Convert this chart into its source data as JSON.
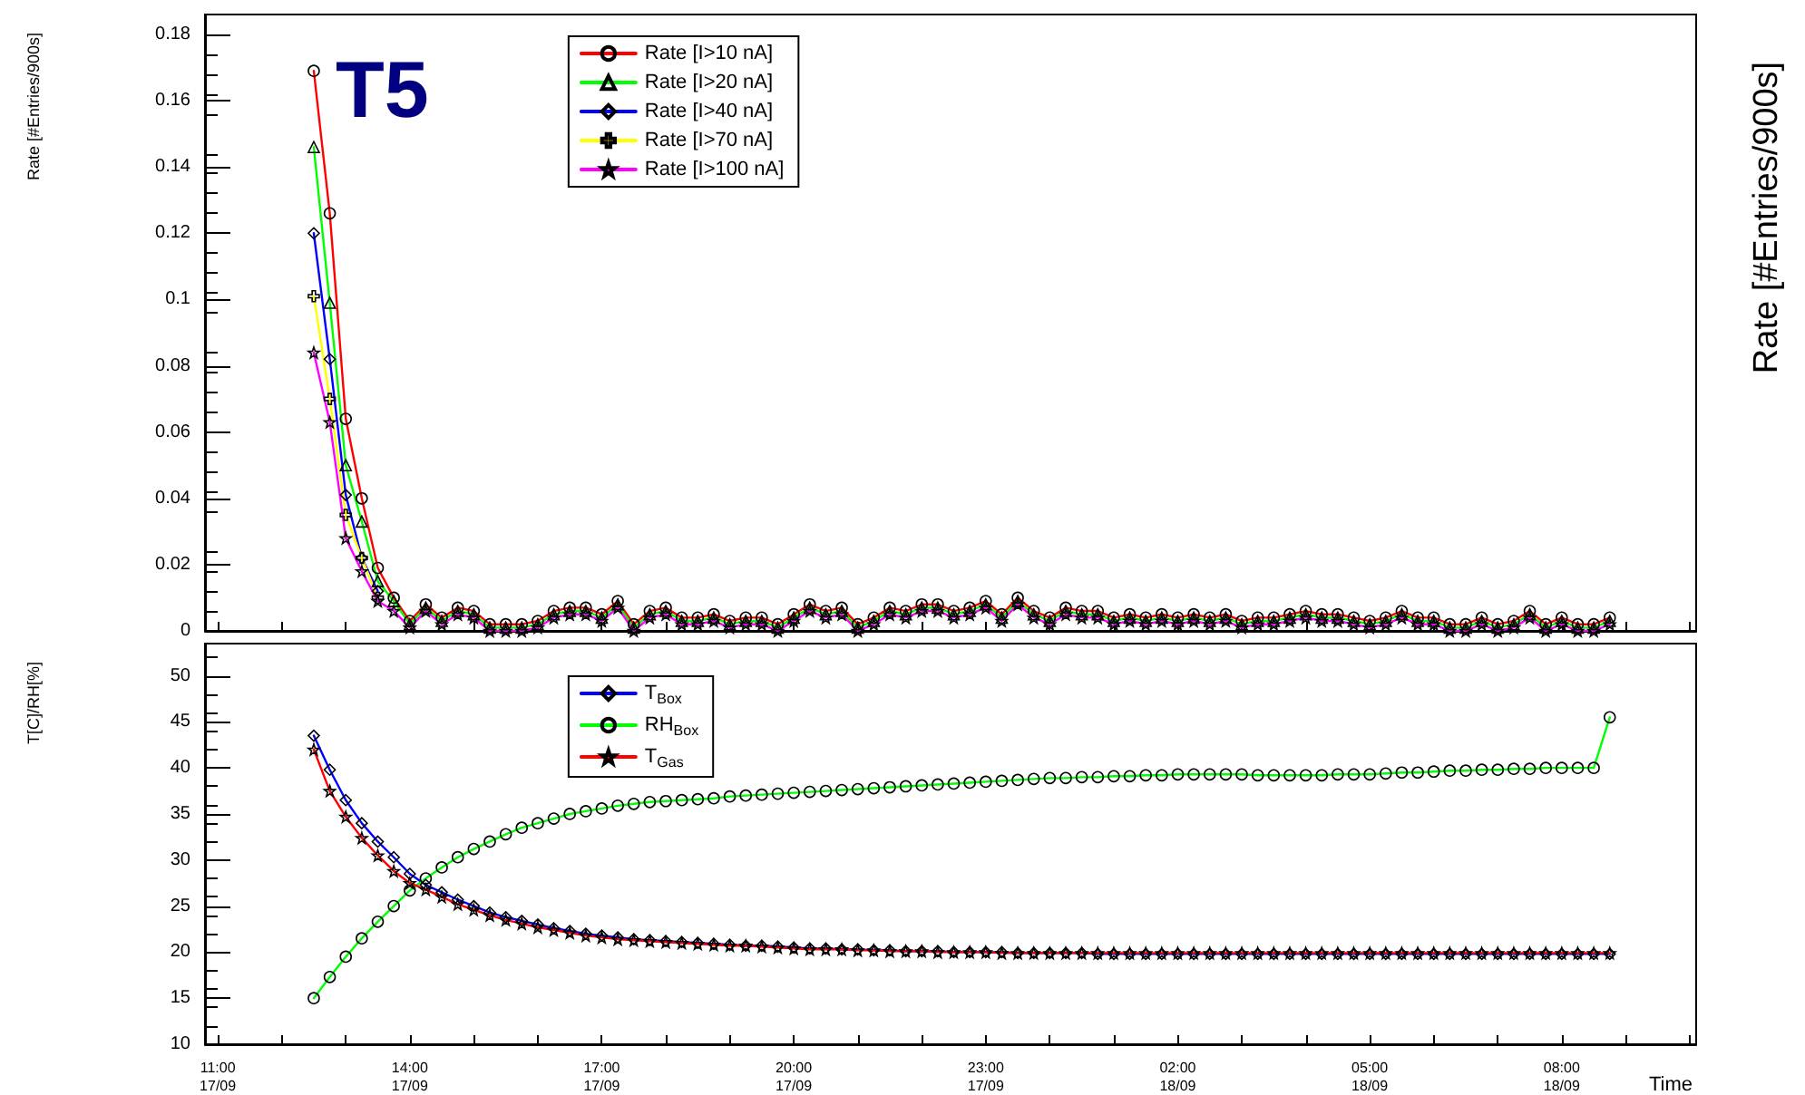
{
  "chart_data": [
    {
      "type": "line",
      "ylabel": "Rate [#Entries/900s]",
      "y2label": "Rate [#Entries/900s]",
      "annotations": [
        "T5"
      ],
      "x": [
        "--09-17T12:30",
        "--09-17T12:45",
        "--09-17T13:00",
        "--09-17T13:15",
        "--09-17T13:30",
        "--09-17T13:45",
        "--09-17T14:00",
        "--09-17T14:15",
        "--09-17T14:30",
        "--09-17T14:45",
        "--09-17T15:00",
        "--09-17T15:15",
        "--09-17T15:30",
        "--09-17T15:45",
        "--09-17T16:00",
        "--09-17T16:15",
        "--09-17T16:30",
        "--09-17T16:45",
        "--09-17T17:00",
        "--09-17T17:15",
        "--09-17T17:30",
        "--09-17T17:45",
        "--09-17T18:00",
        "--09-17T18:15",
        "--09-17T18:30",
        "--09-17T18:45",
        "--09-17T19:00",
        "--09-17T19:15",
        "--09-17T19:30",
        "--09-17T19:45",
        "--09-17T20:00",
        "--09-17T20:15",
        "--09-17T20:30",
        "--09-17T20:45",
        "--09-17T21:00",
        "--09-17T21:15",
        "--09-17T21:30",
        "--09-17T21:45",
        "--09-17T22:00",
        "--09-17T22:15",
        "--09-17T22:30",
        "--09-17T22:45",
        "--09-17T23:00",
        "--09-17T23:15",
        "--09-17T23:30",
        "--09-17T23:45",
        "--09-18T00:00",
        "--09-18T00:15",
        "--09-18T00:30",
        "--09-18T00:45",
        "--09-18T01:00",
        "--09-18T01:15",
        "--09-18T01:30",
        "--09-18T01:45",
        "--09-18T02:00",
        "--09-18T02:15",
        "--09-18T02:30",
        "--09-18T02:45",
        "--09-18T03:00",
        "--09-18T03:15",
        "--09-18T03:30",
        "--09-18T03:45",
        "--09-18T04:00",
        "--09-18T04:15",
        "--09-18T04:30",
        "--09-18T04:45",
        "--09-18T05:00",
        "--09-18T05:15",
        "--09-18T05:30",
        "--09-18T05:45",
        "--09-18T06:00",
        "--09-18T06:15",
        "--09-18T06:30",
        "--09-18T06:45",
        "--09-18T07:00",
        "--09-18T07:15",
        "--09-18T07:30",
        "--09-18T07:45",
        "--09-18T08:00",
        "--09-18T08:15",
        "--09-18T08:30",
        "--09-18T08:45"
      ],
      "series": [
        {
          "name": "Rate [I>10 nA]",
          "color": "#ff0000",
          "marker": "circle",
          "values": [
            0.169,
            0.126,
            0.064,
            0.04,
            0.019,
            0.01,
            0.003,
            0.008,
            0.004,
            0.007,
            0.006,
            0.002,
            0.002,
            0.002,
            0.003,
            0.006,
            0.007,
            0.007,
            0.005,
            0.009,
            0.002,
            0.006,
            0.007,
            0.004,
            0.004,
            0.005,
            0.003,
            0.004,
            0.004,
            0.002,
            0.005,
            0.008,
            0.006,
            0.007,
            0.002,
            0.004,
            0.007,
            0.006,
            0.008,
            0.008,
            0.006,
            0.007,
            0.009,
            0.005,
            0.01,
            0.006,
            0.004,
            0.007,
            0.006,
            0.006,
            0.004,
            0.005,
            0.004,
            0.005,
            0.004,
            0.005,
            0.004,
            0.005,
            0.003,
            0.004,
            0.004,
            0.005,
            0.006,
            0.005,
            0.005,
            0.004,
            0.003,
            0.004,
            0.006,
            0.004,
            0.004,
            0.002,
            0.002,
            0.004,
            0.002,
            0.003,
            0.006,
            0.002,
            0.004,
            0.002,
            0.002,
            0.004
          ]
        },
        {
          "name": "Rate [I>20 nA]",
          "color": "#00ff00",
          "marker": "triangle",
          "values": [
            0.146,
            0.099,
            0.05,
            0.033,
            0.015,
            0.009,
            0.002,
            0.007,
            0.003,
            0.006,
            0.005,
            0.001,
            0.001,
            0.001,
            0.002,
            0.005,
            0.006,
            0.006,
            0.004,
            0.008,
            0.001,
            0.005,
            0.006,
            0.003,
            0.003,
            0.004,
            0.002,
            0.003,
            0.003,
            0.001,
            0.004,
            0.007,
            0.005,
            0.006,
            0.001,
            0.003,
            0.006,
            0.005,
            0.007,
            0.007,
            0.005,
            0.006,
            0.008,
            0.004,
            0.009,
            0.005,
            0.003,
            0.006,
            0.005,
            0.005,
            0.003,
            0.004,
            0.003,
            0.004,
            0.003,
            0.004,
            0.003,
            0.004,
            0.002,
            0.003,
            0.003,
            0.004,
            0.005,
            0.004,
            0.004,
            0.003,
            0.002,
            0.003,
            0.005,
            0.003,
            0.003,
            0.001,
            0.001,
            0.003,
            0.001,
            0.002,
            0.005,
            0.001,
            0.003,
            0.001,
            0.001,
            0.003
          ]
        },
        {
          "name": "Rate [I>40 nA]",
          "color": "#0000ff",
          "marker": "diamond",
          "values": [
            0.12,
            0.082,
            0.041,
            0.022,
            0.012,
            null,
            null,
            null,
            null,
            null,
            null,
            null,
            null,
            null,
            null,
            null,
            null,
            null,
            null,
            null,
            null,
            null,
            null,
            null,
            null,
            null,
            null,
            null,
            null,
            null,
            null,
            null,
            null,
            null,
            null,
            null,
            null,
            null,
            null,
            null,
            null,
            null,
            null,
            null,
            null,
            null,
            null,
            null,
            null,
            null,
            null,
            null,
            null,
            null,
            null,
            null,
            null,
            null,
            null,
            null,
            null,
            null,
            null,
            null,
            null,
            null,
            null,
            null,
            null,
            null,
            null,
            null,
            null,
            null,
            null,
            null,
            null,
            null,
            null,
            null,
            null,
            null
          ]
        },
        {
          "name": "Rate [I>70 nA]",
          "color": "#ffff00",
          "marker": "cross",
          "values": [
            0.101,
            0.07,
            0.035,
            0.022,
            0.01,
            null,
            null,
            null,
            null,
            null,
            null,
            null,
            null,
            null,
            null,
            null,
            null,
            null,
            null,
            null,
            null,
            null,
            null,
            null,
            null,
            null,
            null,
            null,
            null,
            null,
            null,
            null,
            null,
            null,
            null,
            null,
            null,
            null,
            null,
            null,
            null,
            null,
            null,
            null,
            null,
            null,
            null,
            null,
            null,
            null,
            null,
            null,
            null,
            null,
            null,
            null,
            null,
            null,
            null,
            null,
            null,
            null,
            null,
            null,
            null,
            null,
            null,
            null,
            null,
            null,
            null,
            null,
            null,
            null,
            null,
            null,
            null,
            null,
            null,
            null,
            null,
            null
          ]
        },
        {
          "name": "Rate [I>100 nA]",
          "color": "#ff00ff",
          "marker": "star",
          "values": [
            0.084,
            0.063,
            0.028,
            0.018,
            0.009,
            0.006,
            0.001,
            0.006,
            0.002,
            0.005,
            0.004,
            0,
            0,
            0,
            0.001,
            0.004,
            0.005,
            0.005,
            0.003,
            0.007,
            0,
            0.004,
            0.005,
            0.002,
            0.002,
            0.003,
            0.001,
            0.002,
            0.002,
            0,
            0.003,
            0.006,
            0.004,
            0.005,
            0,
            0.002,
            0.005,
            0.004,
            0.006,
            0.006,
            0.004,
            0.005,
            0.007,
            0.003,
            0.008,
            0.004,
            0.002,
            0.005,
            0.004,
            0.004,
            0.002,
            0.003,
            0.002,
            0.003,
            0.002,
            0.003,
            0.002,
            0.003,
            0.001,
            0.002,
            0.002,
            0.003,
            0.004,
            0.003,
            0.003,
            0.002,
            0.001,
            0.002,
            0.004,
            0.002,
            0.002,
            0,
            0,
            0.002,
            0,
            0.001,
            0.004,
            0,
            0.002,
            0,
            0,
            0.002
          ]
        }
      ],
      "xlim": [
        "--09-17T10:48",
        "--09-18T10:06"
      ],
      "xticks": [
        {
          "value": "--09-17T11:00",
          "label": null
        },
        {
          "value": "--09-17T12:00",
          "label": null
        },
        {
          "value": "--09-17T13:00",
          "label": null
        },
        {
          "value": "--09-17T14:00",
          "label": null
        },
        {
          "value": "--09-17T15:00",
          "label": null
        },
        {
          "value": "--09-17T16:00",
          "label": null
        },
        {
          "value": "--09-17T17:00",
          "label": null
        },
        {
          "value": "--09-17T18:00",
          "label": null
        },
        {
          "value": "--09-17T19:00",
          "label": null
        },
        {
          "value": "--09-17T20:00",
          "label": null
        },
        {
          "value": "--09-17T21:00",
          "label": null
        },
        {
          "value": "--09-17T22:00",
          "label": null
        },
        {
          "value": "--09-17T23:00",
          "label": null
        },
        {
          "value": "--09-18T00:00",
          "label": null
        },
        {
          "value": "--09-18T01:00",
          "label": null
        },
        {
          "value": "--09-18T02:00",
          "label": null
        },
        {
          "value": "--09-18T03:00",
          "label": null
        },
        {
          "value": "--09-18T04:00",
          "label": null
        },
        {
          "value": "--09-18T05:00",
          "label": null
        },
        {
          "value": "--09-18T06:00",
          "label": null
        },
        {
          "value": "--09-18T07:00",
          "label": null
        },
        {
          "value": "--09-18T08:00",
          "label": null
        },
        {
          "value": "--09-18T09:00",
          "label": null
        },
        {
          "value": "--09-18T10:00",
          "label": null
        }
      ],
      "ylim": [
        0,
        0.186
      ],
      "yticks": [
        0,
        0.02,
        0.04,
        0.06,
        0.08,
        0.1,
        0.12,
        0.14,
        0.16,
        0.18
      ],
      "tick_labels": "y",
      "legend": "top",
      "grid": false
    },
    {
      "type": "line",
      "xlabel": "Time",
      "ylabel": "T[C]/RH[%]",
      "x": [
        "--09-17T12:30",
        "--09-17T12:45",
        "--09-17T13:00",
        "--09-17T13:15",
        "--09-17T13:30",
        "--09-17T13:45",
        "--09-17T14:00",
        "--09-17T14:15",
        "--09-17T14:30",
        "--09-17T14:45",
        "--09-17T15:00",
        "--09-17T15:15",
        "--09-17T15:30",
        "--09-17T15:45",
        "--09-17T16:00",
        "--09-17T16:15",
        "--09-17T16:30",
        "--09-17T16:45",
        "--09-17T17:00",
        "--09-17T17:15",
        "--09-17T17:30",
        "--09-17T17:45",
        "--09-17T18:00",
        "--09-17T18:15",
        "--09-17T18:30",
        "--09-17T18:45",
        "--09-17T19:00",
        "--09-17T19:15",
        "--09-17T19:30",
        "--09-17T19:45",
        "--09-17T20:00",
        "--09-17T20:15",
        "--09-17T20:30",
        "--09-17T20:45",
        "--09-17T21:00",
        "--09-17T21:15",
        "--09-17T21:30",
        "--09-17T21:45",
        "--09-17T22:00",
        "--09-17T22:15",
        "--09-17T22:30",
        "--09-17T22:45",
        "--09-17T23:00",
        "--09-17T23:15",
        "--09-17T23:30",
        "--09-17T23:45",
        "--09-18T00:00",
        "--09-18T00:15",
        "--09-18T00:30",
        "--09-18T00:45",
        "--09-18T01:00",
        "--09-18T01:15",
        "--09-18T01:30",
        "--09-18T01:45",
        "--09-18T02:00",
        "--09-18T02:15",
        "--09-18T02:30",
        "--09-18T02:45",
        "--09-18T03:00",
        "--09-18T03:15",
        "--09-18T03:30",
        "--09-18T03:45",
        "--09-18T04:00",
        "--09-18T04:15",
        "--09-18T04:30",
        "--09-18T04:45",
        "--09-18T05:00",
        "--09-18T05:15",
        "--09-18T05:30",
        "--09-18T05:45",
        "--09-18T06:00",
        "--09-18T06:15",
        "--09-18T06:30",
        "--09-18T06:45",
        "--09-18T07:00",
        "--09-18T07:15",
        "--09-18T07:30",
        "--09-18T07:45",
        "--09-18T08:00",
        "--09-18T08:15",
        "--09-18T08:30",
        "--09-18T08:45"
      ],
      "series": [
        {
          "name": "T$_{Box}$",
          "color": "#0000ff",
          "marker": "diamond",
          "values": [
            43.5,
            39.8,
            36.5,
            34,
            32,
            30.3,
            28.5,
            27.3,
            26.5,
            25.7,
            25,
            24.3,
            23.8,
            23.4,
            23,
            22.6,
            22.3,
            22,
            21.8,
            21.6,
            21.4,
            21.3,
            21.2,
            21.1,
            21,
            20.9,
            20.8,
            20.7,
            20.7,
            20.6,
            20.5,
            20.4,
            20.4,
            20.3,
            20.3,
            20.2,
            20.2,
            20.1,
            20.1,
            20.1,
            20,
            20,
            20,
            20,
            19.9,
            19.9,
            19.9,
            19.9,
            19.9,
            19.8,
            19.8,
            19.8,
            19.8,
            19.8,
            19.8,
            19.8,
            19.8,
            19.8,
            19.8,
            19.8,
            19.8,
            19.8,
            19.8,
            19.8,
            19.8,
            19.8,
            19.8,
            19.8,
            19.8,
            19.8,
            19.8,
            19.8,
            19.8,
            19.8,
            19.8,
            19.8,
            19.8,
            19.8,
            19.8,
            19.8,
            19.8,
            19.8
          ]
        },
        {
          "name": "RH$_{Box}$",
          "color": "#00ff00",
          "marker": "circle",
          "values": [
            15,
            17.3,
            19.5,
            21.5,
            23.3,
            25,
            26.7,
            28,
            29.2,
            30.3,
            31.2,
            32,
            32.8,
            33.5,
            34,
            34.5,
            35,
            35.3,
            35.6,
            35.9,
            36.1,
            36.3,
            36.4,
            36.5,
            36.6,
            36.7,
            36.9,
            37,
            37.1,
            37.2,
            37.3,
            37.4,
            37.5,
            37.6,
            37.7,
            37.8,
            37.9,
            38,
            38.1,
            38.2,
            38.3,
            38.4,
            38.5,
            38.6,
            38.7,
            38.8,
            38.9,
            38.9,
            39,
            39,
            39.1,
            39.1,
            39.2,
            39.2,
            39.3,
            39.3,
            39.3,
            39.3,
            39.3,
            39.2,
            39.2,
            39.2,
            39.2,
            39.2,
            39.3,
            39.3,
            39.3,
            39.4,
            39.5,
            39.5,
            39.6,
            39.7,
            39.7,
            39.8,
            39.8,
            39.9,
            39.9,
            40,
            40,
            40,
            40,
            45.5
          ]
        },
        {
          "name": "T$_{Gas}$",
          "color": "#ff0000",
          "marker": "star",
          "values": [
            42,
            37.5,
            34.7,
            32.4,
            30.5,
            28.8,
            27.5,
            26.8,
            26,
            25.2,
            24.6,
            24,
            23.5,
            23.1,
            22.7,
            22.4,
            22.1,
            21.8,
            21.6,
            21.4,
            21.3,
            21.2,
            21.1,
            21,
            20.9,
            20.8,
            20.7,
            20.7,
            20.6,
            20.5,
            20.4,
            20.3,
            20.3,
            20.3,
            20.2,
            20.2,
            20.1,
            20.1,
            20.1,
            20,
            20,
            20,
            20,
            19.9,
            19.9,
            19.9,
            19.9,
            19.9,
            19.9,
            19.9,
            19.9,
            19.9,
            19.9,
            19.9,
            19.9,
            19.9,
            19.9,
            19.9,
            19.9,
            19.9,
            19.9,
            19.9,
            19.9,
            19.9,
            19.9,
            19.9,
            19.9,
            19.9,
            19.9,
            19.9,
            19.9,
            19.9,
            19.9,
            19.9,
            19.9,
            19.9,
            19.9,
            19.9,
            19.9,
            19.9,
            19.9,
            19.9
          ]
        }
      ],
      "xlim": [
        "--09-17T10:48",
        "--09-18T10:06"
      ],
      "xticks": [
        {
          "value": "--09-17T11:00",
          "label": "11:00\n17/09"
        },
        {
          "value": "--09-17T12:00",
          "label": null
        },
        {
          "value": "--09-17T13:00",
          "label": null
        },
        {
          "value": "--09-17T14:00",
          "label": "14:00\n17/09"
        },
        {
          "value": "--09-17T15:00",
          "label": null
        },
        {
          "value": "--09-17T16:00",
          "label": null
        },
        {
          "value": "--09-17T17:00",
          "label": "17:00\n17/09"
        },
        {
          "value": "--09-17T18:00",
          "label": null
        },
        {
          "value": "--09-17T19:00",
          "label": null
        },
        {
          "value": "--09-17T20:00",
          "label": "20:00\n17/09"
        },
        {
          "value": "--09-17T21:00",
          "label": null
        },
        {
          "value": "--09-17T22:00",
          "label": null
        },
        {
          "value": "--09-17T23:00",
          "label": "23:00\n17/09"
        },
        {
          "value": "--09-18T00:00",
          "label": null
        },
        {
          "value": "--09-18T01:00",
          "label": null
        },
        {
          "value": "--09-18T02:00",
          "label": "02:00\n18/09"
        },
        {
          "value": "--09-18T03:00",
          "label": null
        },
        {
          "value": "--09-18T04:00",
          "label": null
        },
        {
          "value": "--09-18T05:00",
          "label": "05:00\n18/09"
        },
        {
          "value": "--09-18T06:00",
          "label": null
        },
        {
          "value": "--09-18T07:00",
          "label": null
        },
        {
          "value": "--09-18T08:00",
          "label": "08:00\n18/09"
        },
        {
          "value": "--09-18T09:00",
          "label": null
        },
        {
          "value": "--09-18T10:00",
          "label": null
        }
      ],
      "ylim": [
        10,
        53.5
      ],
      "yticks": [
        10,
        15,
        20,
        25,
        30,
        35,
        40,
        45,
        50
      ],
      "legend": "top",
      "grid": false
    }
  ]
}
